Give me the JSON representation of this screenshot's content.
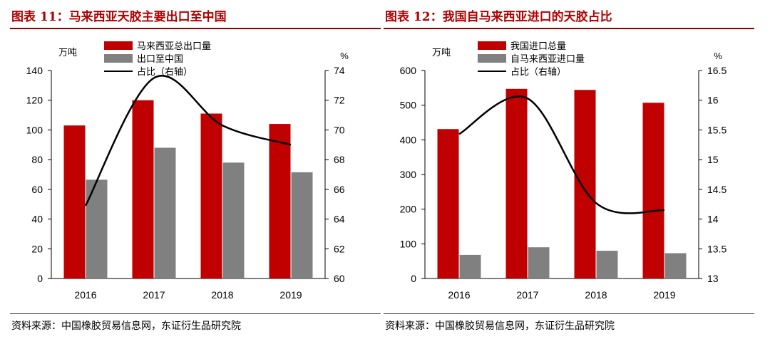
{
  "figures": [
    {
      "title": "图表 11：马来西亚天胶主要出口至中国",
      "source": "资料来源：中国橡胶贸易信息网，东证衍生品研究院"
    },
    {
      "title": "图表 12：我国自马来西亚进口的天胶占比",
      "source": "资料来源：中国橡胶贸易信息网，东证衍生品研究院"
    }
  ],
  "colors": {
    "red": "#c00000",
    "gray": "#808080",
    "line": "#000000",
    "title": "#b30000"
  },
  "chart_data": [
    {
      "type": "bar",
      "categories": [
        "2016",
        "2017",
        "2018",
        "2019"
      ],
      "series": [
        {
          "name": "马来西亚总出口量",
          "type": "bar",
          "axis": "left",
          "color": "#c00000",
          "values": [
            103,
            120,
            111,
            104
          ]
        },
        {
          "name": "出口至中国",
          "type": "bar",
          "axis": "left",
          "color": "#808080",
          "values": [
            66.5,
            88,
            78,
            71.5
          ]
        },
        {
          "name": "占比（右轴）",
          "type": "line",
          "axis": "right",
          "color": "#000000",
          "values": [
            64.9,
            73.5,
            70.3,
            69.0
          ]
        }
      ],
      "yleft": {
        "unit": "万吨",
        "min": 0,
        "max": 140,
        "ticks": [
          "0",
          "20",
          "40",
          "60",
          "80",
          "100",
          "120",
          "140"
        ]
      },
      "yright": {
        "unit": "%",
        "min": 60,
        "max": 74,
        "ticks": [
          "60",
          "62",
          "64",
          "66",
          "68",
          "70",
          "72",
          "74"
        ]
      },
      "legend": "top-center",
      "grid": false
    },
    {
      "type": "bar",
      "categories": [
        "2016",
        "2017",
        "2018",
        "2019"
      ],
      "series": [
        {
          "name": "我国进口总量",
          "type": "bar",
          "axis": "left",
          "color": "#c00000",
          "values": [
            431,
            547,
            544,
            507
          ]
        },
        {
          "name": "自马来西亚进口量",
          "type": "bar",
          "axis": "left",
          "color": "#808080",
          "values": [
            68,
            90,
            80,
            73
          ]
        },
        {
          "name": "占比（右轴）",
          "type": "line",
          "axis": "right",
          "color": "#000000",
          "values": [
            15.43,
            16.03,
            14.27,
            14.15
          ]
        }
      ],
      "yleft": {
        "unit": "万吨",
        "min": 0,
        "max": 600,
        "ticks": [
          "0",
          "100",
          "200",
          "300",
          "400",
          "500",
          "600"
        ]
      },
      "yright": {
        "unit": "%",
        "min": 13,
        "max": 16.5,
        "ticks": [
          "13",
          "13.5",
          "14",
          "14.5",
          "15",
          "15.5",
          "16",
          "16.5"
        ]
      },
      "legend": "top-center",
      "grid": false
    }
  ]
}
